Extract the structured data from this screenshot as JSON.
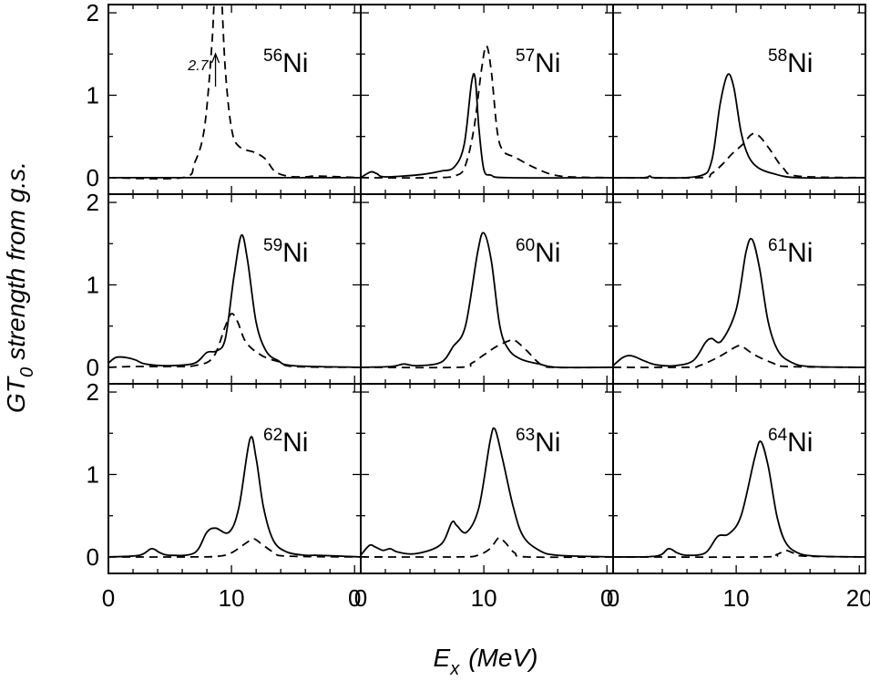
{
  "chart_data": {
    "type": "line",
    "grid_layout": "3x3",
    "xlabel": "E",
    "xlabel_sub": "x",
    "xlabel_unit": "(MeV)",
    "ylabel_pre": "GT",
    "ylabel_sub": "0",
    "ylabel_post": "strength from g.s.",
    "xlim": [
      0,
      20.5
    ],
    "ylim": [
      -0.2,
      2.1
    ],
    "x_ticks": [
      0,
      10,
      20
    ],
    "x_tick_labels": [
      [
        "0",
        "10",
        "0"
      ],
      [
        "0",
        "10",
        "0"
      ],
      [
        "0",
        "10",
        "20"
      ]
    ],
    "y_ticks": [
      0,
      1,
      2
    ],
    "y_tick_labels": [
      "0",
      "1",
      "2"
    ],
    "series_styles": [
      {
        "name": "solid",
        "dash": "none"
      },
      {
        "name": "dashed",
        "dash": "9,6"
      }
    ],
    "panels": [
      {
        "mass": "56",
        "element": "Ni",
        "solid": [
          [
            0,
            0
          ],
          [
            20.5,
            0
          ]
        ],
        "dashed": [
          [
            0,
            0
          ],
          [
            6,
            0
          ],
          [
            7,
            0.18
          ],
          [
            7.8,
            0.6
          ],
          [
            8.4,
            1.6
          ],
          [
            8.7,
            2.4
          ],
          [
            9.1,
            2.4
          ],
          [
            9.5,
            1.3
          ],
          [
            10,
            0.6
          ],
          [
            10.6,
            0.38
          ],
          [
            12,
            0.3
          ],
          [
            12.8,
            0.22
          ],
          [
            13.5,
            0.08
          ],
          [
            14.5,
            0.02
          ],
          [
            16,
            0.01
          ],
          [
            17,
            0.02
          ],
          [
            20.5,
            0
          ]
        ],
        "annotation": {
          "text": "2.7",
          "x": 8.7,
          "y": 1.5
        }
      },
      {
        "mass": "57",
        "element": "Ni",
        "solid": [
          [
            0,
            0
          ],
          [
            0.8,
            0.07
          ],
          [
            1.3,
            0.05
          ],
          [
            2,
            0.01
          ],
          [
            5,
            0.04
          ],
          [
            6.5,
            0.08
          ],
          [
            7.6,
            0.13
          ],
          [
            8.4,
            0.4
          ],
          [
            9,
            1.15
          ],
          [
            9.3,
            1.2
          ],
          [
            9.6,
            0.6
          ],
          [
            10,
            0.1
          ],
          [
            10.6,
            0.03
          ],
          [
            12,
            0
          ],
          [
            20.5,
            0
          ]
        ],
        "dashed": [
          [
            0,
            0
          ],
          [
            6,
            0
          ],
          [
            7.8,
            0.03
          ],
          [
            8.5,
            0.15
          ],
          [
            9.2,
            0.6
          ],
          [
            9.8,
            1.3
          ],
          [
            10.2,
            1.6
          ],
          [
            10.6,
            1.3
          ],
          [
            11.1,
            0.55
          ],
          [
            11.6,
            0.32
          ],
          [
            12.5,
            0.25
          ],
          [
            14,
            0.13
          ],
          [
            15.5,
            0.04
          ],
          [
            17,
            0.01
          ],
          [
            20.5,
            0
          ]
        ]
      },
      {
        "mass": "58",
        "element": "Ni",
        "solid": [
          [
            0,
            0
          ],
          [
            2.5,
            0
          ],
          [
            3,
            0.02
          ],
          [
            3.5,
            0
          ],
          [
            7,
            0.02
          ],
          [
            8,
            0.2
          ],
          [
            8.7,
            0.9
          ],
          [
            9.3,
            1.25
          ],
          [
            9.8,
            1.1
          ],
          [
            10.4,
            0.55
          ],
          [
            11,
            0.26
          ],
          [
            11.8,
            0.12
          ],
          [
            13,
            0.05
          ],
          [
            15,
            0
          ],
          [
            20.5,
            0
          ]
        ],
        "dashed": [
          [
            0,
            0
          ],
          [
            7,
            0
          ],
          [
            8,
            0.05
          ],
          [
            9,
            0.18
          ],
          [
            9.6,
            0.28
          ],
          [
            10.5,
            0.4
          ],
          [
            11.3,
            0.53
          ],
          [
            11.9,
            0.5
          ],
          [
            12.7,
            0.35
          ],
          [
            13.8,
            0.12
          ],
          [
            15,
            0.02
          ],
          [
            20.5,
            0
          ]
        ]
      },
      {
        "mass": "59",
        "element": "Ni",
        "solid": [
          [
            0,
            0.05
          ],
          [
            0.6,
            0.12
          ],
          [
            1.4,
            0.12
          ],
          [
            2.2,
            0.09
          ],
          [
            3,
            0.04
          ],
          [
            5,
            0.02
          ],
          [
            7,
            0.05
          ],
          [
            8,
            0.18
          ],
          [
            8.8,
            0.2
          ],
          [
            9.5,
            0.35
          ],
          [
            10.2,
            1.1
          ],
          [
            10.8,
            1.6
          ],
          [
            11.3,
            1.3
          ],
          [
            12,
            0.55
          ],
          [
            12.8,
            0.2
          ],
          [
            13.8,
            0.08
          ],
          [
            15,
            0.02
          ],
          [
            20.5,
            0
          ]
        ],
        "dashed": [
          [
            0,
            0
          ],
          [
            2,
            0.01
          ],
          [
            5,
            0.01
          ],
          [
            7,
            0.02
          ],
          [
            8.5,
            0.12
          ],
          [
            9.5,
            0.5
          ],
          [
            10,
            0.65
          ],
          [
            10.5,
            0.55
          ],
          [
            11.2,
            0.3
          ],
          [
            12.5,
            0.14
          ],
          [
            14,
            0.06
          ],
          [
            15,
            0.01
          ],
          [
            20.5,
            0
          ]
        ]
      },
      {
        "mass": "60",
        "element": "Ni",
        "solid": [
          [
            0,
            0
          ],
          [
            2.5,
            0.01
          ],
          [
            3.5,
            0.04
          ],
          [
            4.5,
            0.02
          ],
          [
            6.5,
            0.06
          ],
          [
            7.5,
            0.25
          ],
          [
            8.5,
            0.5
          ],
          [
            9.5,
            1.4
          ],
          [
            10,
            1.63
          ],
          [
            10.6,
            1.3
          ],
          [
            11.3,
            0.5
          ],
          [
            12,
            0.22
          ],
          [
            13,
            0.1
          ],
          [
            14.5,
            0.04
          ],
          [
            16,
            0
          ],
          [
            20.5,
            0
          ]
        ],
        "dashed": [
          [
            0,
            0
          ],
          [
            8,
            0
          ],
          [
            9,
            0.05
          ],
          [
            10,
            0.15
          ],
          [
            11,
            0.25
          ],
          [
            12,
            0.32
          ],
          [
            12.5,
            0.33
          ],
          [
            13.5,
            0.2
          ],
          [
            14.5,
            0.05
          ],
          [
            15.5,
            0
          ],
          [
            20.5,
            0
          ]
        ]
      },
      {
        "mass": "61",
        "element": "Ni",
        "solid": [
          [
            0,
            0.02
          ],
          [
            0.8,
            0.12
          ],
          [
            1.5,
            0.14
          ],
          [
            2.5,
            0.08
          ],
          [
            3.5,
            0.03
          ],
          [
            5,
            0.02
          ],
          [
            6.5,
            0.08
          ],
          [
            7.5,
            0.3
          ],
          [
            8,
            0.35
          ],
          [
            8.8,
            0.32
          ],
          [
            10,
            0.7
          ],
          [
            10.8,
            1.4
          ],
          [
            11.3,
            1.55
          ],
          [
            11.9,
            1.2
          ],
          [
            12.6,
            0.55
          ],
          [
            13.4,
            0.2
          ],
          [
            14.5,
            0.06
          ],
          [
            16,
            0.01
          ],
          [
            20.5,
            0
          ]
        ],
        "dashed": [
          [
            0,
            0
          ],
          [
            6,
            0
          ],
          [
            7,
            0.02
          ],
          [
            8.5,
            0.12
          ],
          [
            10,
            0.25
          ],
          [
            10.5,
            0.25
          ],
          [
            11.5,
            0.15
          ],
          [
            13,
            0.05
          ],
          [
            14,
            0.01
          ],
          [
            20.5,
            0
          ]
        ]
      },
      {
        "mass": "62",
        "element": "Ni",
        "solid": [
          [
            0,
            0
          ],
          [
            2.5,
            0.02
          ],
          [
            3.5,
            0.1
          ],
          [
            4.2,
            0.05
          ],
          [
            5,
            0.02
          ],
          [
            7,
            0.05
          ],
          [
            8,
            0.3
          ],
          [
            8.7,
            0.35
          ],
          [
            9.8,
            0.3
          ],
          [
            10.6,
            0.6
          ],
          [
            11.5,
            1.43
          ],
          [
            12,
            1.2
          ],
          [
            12.6,
            0.6
          ],
          [
            13.4,
            0.2
          ],
          [
            14.5,
            0.06
          ],
          [
            16,
            0.02
          ],
          [
            17,
            0.02
          ],
          [
            20.5,
            0
          ]
        ],
        "dashed": [
          [
            0,
            0
          ],
          [
            7,
            0
          ],
          [
            9,
            0.01
          ],
          [
            10,
            0.05
          ],
          [
            11.2,
            0.17
          ],
          [
            11.8,
            0.22
          ],
          [
            12.5,
            0.15
          ],
          [
            13.5,
            0.05
          ],
          [
            14.5,
            0.01
          ],
          [
            20.5,
            0
          ]
        ]
      },
      {
        "mass": "63",
        "element": "Ni",
        "solid": [
          [
            0,
            0.02
          ],
          [
            0.7,
            0.14
          ],
          [
            1.2,
            0.12
          ],
          [
            1.8,
            0.08
          ],
          [
            2.4,
            0.1
          ],
          [
            3,
            0.06
          ],
          [
            4.5,
            0.04
          ],
          [
            6.5,
            0.15
          ],
          [
            7.4,
            0.42
          ],
          [
            7.8,
            0.38
          ],
          [
            8.6,
            0.3
          ],
          [
            9.6,
            0.6
          ],
          [
            10.5,
            1.4
          ],
          [
            10.9,
            1.55
          ],
          [
            11.5,
            1.2
          ],
          [
            12.4,
            0.6
          ],
          [
            13.2,
            0.25
          ],
          [
            14.5,
            0.08
          ],
          [
            16,
            0.02
          ],
          [
            20.5,
            0
          ]
        ],
        "dashed": [
          [
            0,
            0
          ],
          [
            8,
            0
          ],
          [
            9.5,
            0.02
          ],
          [
            10.5,
            0.1
          ],
          [
            11.2,
            0.23
          ],
          [
            11.7,
            0.18
          ],
          [
            12.5,
            0.05
          ],
          [
            13.5,
            0
          ],
          [
            20.5,
            0
          ]
        ]
      },
      {
        "mass": "64",
        "element": "Ni",
        "solid": [
          [
            0,
            0
          ],
          [
            3.5,
            0.01
          ],
          [
            4.5,
            0.1
          ],
          [
            5.2,
            0.05
          ],
          [
            6,
            0.02
          ],
          [
            7.5,
            0.05
          ],
          [
            8.5,
            0.25
          ],
          [
            9.4,
            0.28
          ],
          [
            10.4,
            0.5
          ],
          [
            11.5,
            1.2
          ],
          [
            12,
            1.4
          ],
          [
            12.6,
            1.1
          ],
          [
            13.3,
            0.5
          ],
          [
            14,
            0.18
          ],
          [
            15,
            0.05
          ],
          [
            16.5,
            0.01
          ],
          [
            20.5,
            0
          ]
        ],
        "dashed": [
          [
            0,
            0
          ],
          [
            12,
            0
          ],
          [
            13.3,
            0.03
          ],
          [
            14,
            0.08
          ],
          [
            14.6,
            0.05
          ],
          [
            15.5,
            0.01
          ],
          [
            20.5,
            0
          ]
        ]
      }
    ]
  }
}
